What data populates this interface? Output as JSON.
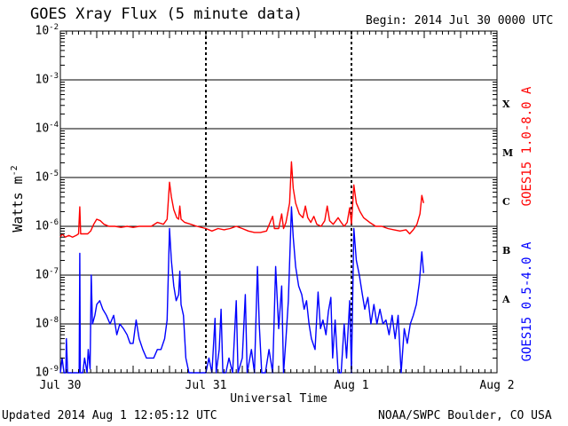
{
  "header": {
    "title": "GOES Xray Flux (5 minute data)",
    "begin": "Begin:  2014 Jul 30 0000 UTC"
  },
  "footer": {
    "updated": "Updated 2014 Aug  1 12:05:12 UTC",
    "credit": "NOAA/SWPC Boulder, CO USA"
  },
  "chart_data": {
    "type": "line",
    "title": "GOES Xray Flux (5 minute data)",
    "xlabel": "Universal Time",
    "ylabel": "Watts m",
    "ylabel_superscript": "-2",
    "yscale": "log",
    "ylim": [
      1e-09,
      0.01
    ],
    "xlim_hours": [
      0,
      72
    ],
    "x_tick_labels": [
      "Jul 30",
      "Jul 31",
      "Aug 1",
      "Aug 2"
    ],
    "y_tick_labels": [
      {
        "base": "10",
        "exp": "-9"
      },
      {
        "base": "10",
        "exp": "-8"
      },
      {
        "base": "10",
        "exp": "-7"
      },
      {
        "base": "10",
        "exp": "-6"
      },
      {
        "base": "10",
        "exp": "-5"
      },
      {
        "base": "10",
        "exp": "-4"
      },
      {
        "base": "10",
        "exp": "-3"
      },
      {
        "base": "10",
        "exp": "-2"
      }
    ],
    "flare_classes": [
      "X",
      "M",
      "C",
      "B",
      "A"
    ],
    "grid": true,
    "colors": {
      "long": "#ff0000",
      "short": "#0000ff"
    },
    "series": [
      {
        "name": "GOES15 1.0-8.0 A",
        "color": "#ff0000",
        "points_hours_flux": [
          [
            0.0,
            6e-07
          ],
          [
            0.3,
            7e-07
          ],
          [
            0.8,
            6e-07
          ],
          [
            1.4,
            6.5e-07
          ],
          [
            2.0,
            6e-07
          ],
          [
            2.6,
            6.5e-07
          ],
          [
            3.0,
            7e-07
          ],
          [
            3.2,
            2.5e-06
          ],
          [
            3.35,
            7e-07
          ],
          [
            3.7,
            7e-07
          ],
          [
            4.5,
            7e-07
          ],
          [
            5.0,
            8e-07
          ],
          [
            5.5,
            1.1e-06
          ],
          [
            6.0,
            1.4e-06
          ],
          [
            6.6,
            1.3e-06
          ],
          [
            7.2,
            1.1e-06
          ],
          [
            8.0,
            1e-06
          ],
          [
            9.0,
            1e-06
          ],
          [
            10.0,
            9.5e-07
          ],
          [
            11.0,
            1e-06
          ],
          [
            12.0,
            9.5e-07
          ],
          [
            13.0,
            1e-06
          ],
          [
            14.0,
            1e-06
          ],
          [
            15.0,
            1e-06
          ],
          [
            16.0,
            1.2e-06
          ],
          [
            17.0,
            1.1e-06
          ],
          [
            17.6,
            1.4e-06
          ],
          [
            18.0,
            8e-06
          ],
          [
            18.3,
            4e-06
          ],
          [
            18.7,
            2.2e-06
          ],
          [
            19.2,
            1.5e-06
          ],
          [
            19.5,
            1.4e-06
          ],
          [
            19.7,
            2.6e-06
          ],
          [
            19.9,
            1.4e-06
          ],
          [
            20.5,
            1.2e-06
          ],
          [
            21.5,
            1.1e-06
          ],
          [
            22.5,
            1e-06
          ],
          [
            24.0,
            9e-07
          ],
          [
            25.0,
            8e-07
          ],
          [
            26.0,
            9e-07
          ],
          [
            27.0,
            8.5e-07
          ],
          [
            28.0,
            9e-07
          ],
          [
            29.0,
            1e-06
          ],
          [
            30.0,
            9e-07
          ],
          [
            31.0,
            8e-07
          ],
          [
            32.0,
            7.5e-07
          ],
          [
            33.0,
            7.5e-07
          ],
          [
            34.0,
            8e-07
          ],
          [
            35.0,
            1.6e-06
          ],
          [
            35.3,
            9e-07
          ],
          [
            36.0,
            9e-07
          ],
          [
            36.5,
            1.8e-06
          ],
          [
            36.8,
            9e-07
          ],
          [
            37.2,
            1.2e-06
          ],
          [
            37.8,
            3e-06
          ],
          [
            38.1,
            2.1e-05
          ],
          [
            38.4,
            6e-06
          ],
          [
            38.8,
            3e-06
          ],
          [
            39.4,
            1.8e-06
          ],
          [
            40.0,
            1.5e-06
          ],
          [
            40.4,
            2.6e-06
          ],
          [
            40.8,
            1.5e-06
          ],
          [
            41.3,
            1.2e-06
          ],
          [
            41.8,
            1.6e-06
          ],
          [
            42.3,
            1.1e-06
          ],
          [
            43.0,
            1e-06
          ],
          [
            43.6,
            1.3e-06
          ],
          [
            44.0,
            2.6e-06
          ],
          [
            44.4,
            1.3e-06
          ],
          [
            45.0,
            1.1e-06
          ],
          [
            45.8,
            1.5e-06
          ],
          [
            46.3,
            1.2e-06
          ],
          [
            46.8,
            1e-06
          ],
          [
            47.3,
            1.2e-06
          ],
          [
            47.7,
            2.4e-06
          ],
          [
            48.0,
            1.1e-06
          ],
          [
            48.4,
            7e-06
          ],
          [
            48.8,
            3e-06
          ],
          [
            49.4,
            2e-06
          ],
          [
            50.0,
            1.5e-06
          ],
          [
            51.0,
            1.2e-06
          ],
          [
            52.0,
            1e-06
          ],
          [
            53.0,
            1e-06
          ],
          [
            54.0,
            9e-07
          ],
          [
            55.0,
            8.5e-07
          ],
          [
            56.0,
            8e-07
          ],
          [
            57.0,
            8.5e-07
          ],
          [
            57.6,
            7e-07
          ],
          [
            58.2,
            8.5e-07
          ],
          [
            58.8,
            1.1e-06
          ],
          [
            59.3,
            1.8e-06
          ],
          [
            59.6,
            4.3e-06
          ],
          [
            59.9,
            3e-06
          ]
        ]
      },
      {
        "name": "GOES15 0.5-4.0 A",
        "color": "#0000ff",
        "points_hours_flux": [
          [
            0.0,
            1e-09
          ],
          [
            0.3,
            2e-09
          ],
          [
            0.6,
            1e-09
          ],
          [
            0.9,
            1e-09
          ],
          [
            1.0,
            5e-09
          ],
          [
            1.2,
            1e-09
          ],
          [
            1.8,
            1e-09
          ],
          [
            2.4,
            1e-09
          ],
          [
            3.1,
            1e-09
          ],
          [
            3.2,
            2.8e-07
          ],
          [
            3.3,
            1e-09
          ],
          [
            3.7,
            1e-09
          ],
          [
            4.0,
            2e-09
          ],
          [
            4.4,
            1e-09
          ],
          [
            4.6,
            3e-09
          ],
          [
            4.9,
            1.2e-09
          ],
          [
            5.1,
            1e-07
          ],
          [
            5.3,
            1e-08
          ],
          [
            5.7,
            1.5e-08
          ],
          [
            6.0,
            2.5e-08
          ],
          [
            6.5,
            3e-08
          ],
          [
            7.0,
            2e-08
          ],
          [
            7.6,
            1.5e-08
          ],
          [
            8.2,
            1e-08
          ],
          [
            8.8,
            1.5e-08
          ],
          [
            9.3,
            6e-09
          ],
          [
            9.8,
            1e-08
          ],
          [
            10.4,
            8e-09
          ],
          [
            11.0,
            6e-09
          ],
          [
            11.5,
            4e-09
          ],
          [
            12.0,
            4e-09
          ],
          [
            12.5,
            1.2e-08
          ],
          [
            13.0,
            5e-09
          ],
          [
            13.6,
            3e-09
          ],
          [
            14.2,
            2e-09
          ],
          [
            14.8,
            2e-09
          ],
          [
            15.4,
            2e-09
          ],
          [
            16.0,
            3e-09
          ],
          [
            16.6,
            3e-09
          ],
          [
            17.2,
            5e-09
          ],
          [
            17.6,
            1.2e-08
          ],
          [
            18.0,
            9e-07
          ],
          [
            18.3,
            2e-07
          ],
          [
            18.7,
            6e-08
          ],
          [
            19.1,
            3e-08
          ],
          [
            19.5,
            4e-08
          ],
          [
            19.7,
            1.2e-07
          ],
          [
            19.9,
            2.5e-08
          ],
          [
            20.3,
            1.5e-08
          ],
          [
            20.7,
            2e-09
          ],
          [
            21.2,
            1e-09
          ],
          [
            22.0,
            1e-09
          ],
          [
            23.0,
            1e-09
          ],
          [
            24.0,
            1e-09
          ],
          [
            24.5,
            2e-09
          ],
          [
            25.0,
            1e-09
          ],
          [
            25.5,
            1.3e-08
          ],
          [
            25.7,
            1e-09
          ],
          [
            26.2,
            3e-09
          ],
          [
            26.5,
            2e-08
          ],
          [
            26.8,
            1e-09
          ],
          [
            27.3,
            1e-09
          ],
          [
            27.8,
            2e-09
          ],
          [
            28.4,
            1e-09
          ],
          [
            29.0,
            3e-08
          ],
          [
            29.3,
            1e-09
          ],
          [
            30.0,
            2e-09
          ],
          [
            30.5,
            4e-08
          ],
          [
            30.8,
            1e-09
          ],
          [
            31.5,
            3e-09
          ],
          [
            32.0,
            1e-09
          ],
          [
            32.5,
            1.5e-07
          ],
          [
            32.8,
            1e-08
          ],
          [
            33.2,
            1e-09
          ],
          [
            33.8,
            1e-09
          ],
          [
            34.4,
            3e-09
          ],
          [
            35.0,
            1e-09
          ],
          [
            35.5,
            1.5e-07
          ],
          [
            36.0,
            8e-09
          ],
          [
            36.5,
            6e-08
          ],
          [
            36.8,
            1e-09
          ],
          [
            37.2,
            5e-09
          ],
          [
            37.6,
            3e-08
          ],
          [
            38.1,
            2.5e-06
          ],
          [
            38.4,
            6e-07
          ],
          [
            38.8,
            1.5e-07
          ],
          [
            39.3,
            6e-08
          ],
          [
            39.8,
            4e-08
          ],
          [
            40.2,
            2e-08
          ],
          [
            40.6,
            3e-08
          ],
          [
            41.0,
            1e-08
          ],
          [
            41.4,
            5e-09
          ],
          [
            42.0,
            3e-09
          ],
          [
            42.5,
            4.5e-08
          ],
          [
            42.9,
            8e-09
          ],
          [
            43.3,
            1.2e-08
          ],
          [
            43.8,
            6e-09
          ],
          [
            44.2,
            1.8e-08
          ],
          [
            44.6,
            3.5e-08
          ],
          [
            44.9,
            2e-09
          ],
          [
            45.3,
            1.2e-08
          ],
          [
            45.8,
            1e-09
          ],
          [
            46.3,
            1e-09
          ],
          [
            46.8,
            1e-08
          ],
          [
            47.2,
            2e-09
          ],
          [
            47.7,
            3e-08
          ],
          [
            48.0,
            1e-09
          ],
          [
            48.4,
            9e-07
          ],
          [
            48.8,
            2e-07
          ],
          [
            49.3,
            1e-07
          ],
          [
            49.8,
            4e-08
          ],
          [
            50.2,
            2e-08
          ],
          [
            50.7,
            3.5e-08
          ],
          [
            51.2,
            1e-08
          ],
          [
            51.7,
            2.5e-08
          ],
          [
            52.2,
            1e-08
          ],
          [
            52.7,
            2e-08
          ],
          [
            53.2,
            1e-08
          ],
          [
            53.7,
            1.2e-08
          ],
          [
            54.2,
            6e-09
          ],
          [
            54.7,
            1.5e-08
          ],
          [
            55.2,
            5e-09
          ],
          [
            55.7,
            1.5e-08
          ],
          [
            56.2,
            1e-09
          ],
          [
            56.7,
            8e-09
          ],
          [
            57.2,
            4e-09
          ],
          [
            57.7,
            1e-08
          ],
          [
            58.2,
            1.5e-08
          ],
          [
            58.7,
            2.5e-08
          ],
          [
            59.2,
            7e-08
          ],
          [
            59.6,
            3e-07
          ],
          [
            59.9,
            1.1e-07
          ]
        ]
      }
    ]
  }
}
